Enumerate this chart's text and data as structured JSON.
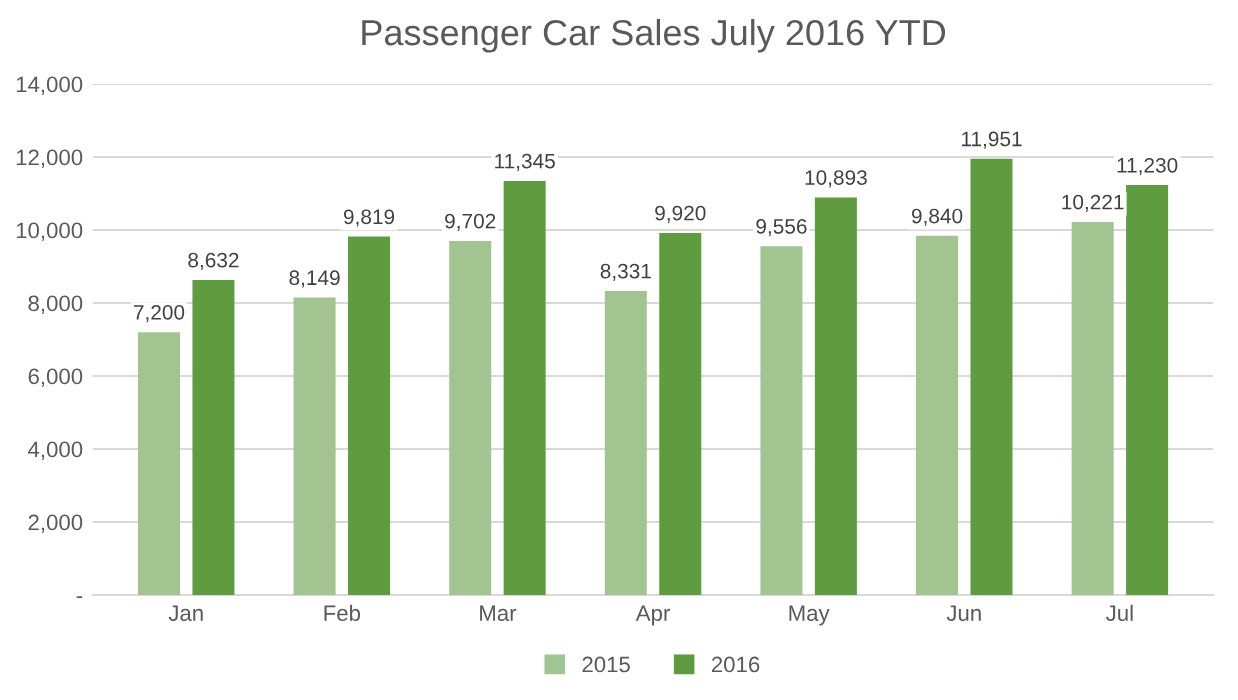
{
  "chart_data": {
    "type": "bar",
    "title": "Passenger Car Sales July 2016 YTD",
    "categories": [
      "Jan",
      "Feb",
      "Mar",
      "Apr",
      "May",
      "Jun",
      "Jul"
    ],
    "series": [
      {
        "name": "2015",
        "color": "#a1c490",
        "values": [
          7200,
          8149,
          9702,
          8331,
          9556,
          9840,
          10221
        ],
        "value_labels": [
          "7,200",
          "8,149",
          "9,702",
          "8,331",
          "9,556",
          "9,840",
          "10,221"
        ]
      },
      {
        "name": "2016",
        "color": "#5f9b3f",
        "values": [
          8632,
          9819,
          11345,
          9920,
          10893,
          11951,
          11230
        ],
        "value_labels": [
          "8,632",
          "9,819",
          "11,345",
          "9,920",
          "10,893",
          "11,951",
          "11,230"
        ]
      }
    ],
    "ylim": [
      0,
      14000
    ],
    "yticks": [
      {
        "value": 0,
        "label": "-"
      },
      {
        "value": 2000,
        "label": "2,000"
      },
      {
        "value": 4000,
        "label": "4,000"
      },
      {
        "value": 6000,
        "label": "6,000"
      },
      {
        "value": 8000,
        "label": "8,000"
      },
      {
        "value": 10000,
        "label": "10,000"
      },
      {
        "value": 12000,
        "label": "12,000"
      },
      {
        "value": 14000,
        "label": "14,000"
      }
    ],
    "grid": "y",
    "legend": "bottom"
  }
}
